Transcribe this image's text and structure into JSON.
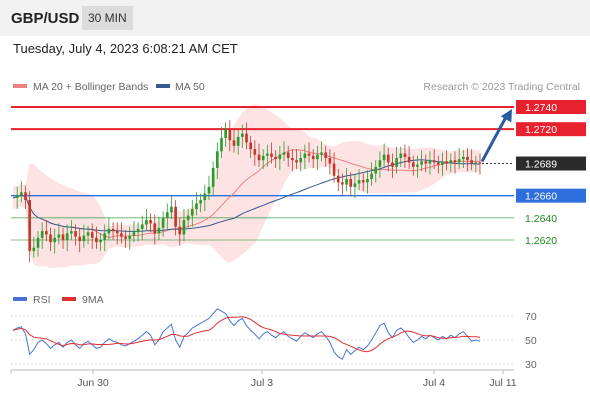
{
  "header": {
    "symbol": "GBP/USD",
    "timeframe": "30 MIN"
  },
  "datetime": "Tuesday, July 4, 2023 6:08:21 AM CET",
  "credit": "Research © 2023 Trading Central",
  "colors": {
    "resistance": "#e8212e",
    "support": "#2f6fdc",
    "target": "#1f8a1f",
    "candle_up": "#2b9b2b",
    "candle_down": "#c0392b",
    "ma20": "#f08080",
    "bollinger_fill": "#fde0e0",
    "ma50": "#355a8f",
    "rsi": "#4a72d6",
    "rsi_ma": "#e03030",
    "arrow": "#2c5a9e"
  },
  "chart_data": [
    {
      "type": "candlestick",
      "legend": [
        {
          "name": "MA 20 + Bollinger Bands",
          "color": "#f08080"
        },
        {
          "name": "MA 50",
          "color": "#355a8f"
        }
      ],
      "price_range": [
        1.26,
        1.275
      ],
      "levels": [
        {
          "value": 1.274,
          "label": "1.2740",
          "kind": "resistance"
        },
        {
          "value": 1.272,
          "label": "1.2720",
          "kind": "resistance"
        },
        {
          "value": 1.2689,
          "label": "1.2689",
          "kind": "last"
        },
        {
          "value": 1.266,
          "label": "1.2660",
          "kind": "support"
        },
        {
          "value": 1.264,
          "label": "1.2640",
          "kind": "target"
        },
        {
          "value": 1.262,
          "label": "1.2620",
          "kind": "target"
        }
      ],
      "close_path": [
        1.2658,
        1.266,
        1.2663,
        1.2656,
        1.261,
        1.2613,
        1.2622,
        1.2628,
        1.2625,
        1.2618,
        1.2622,
        1.2625,
        1.262,
        1.2626,
        1.2628,
        1.2623,
        1.2619,
        1.2624,
        1.2627,
        1.2622,
        1.2618,
        1.262,
        1.2626,
        1.263,
        1.2628,
        1.2626,
        1.2623,
        1.2621,
        1.2624,
        1.2627,
        1.263,
        1.2634,
        1.2638,
        1.2635,
        1.2626,
        1.2631,
        1.264,
        1.2645,
        1.265,
        1.2632,
        1.2625,
        1.2638,
        1.2642,
        1.2648,
        1.2653,
        1.2656,
        1.2662,
        1.2668,
        1.2685,
        1.27,
        1.2712,
        1.272,
        1.271,
        1.2705,
        1.2713,
        1.2716,
        1.2708,
        1.2702,
        1.2697,
        1.2692,
        1.2696,
        1.2698,
        1.2695,
        1.2693,
        1.2697,
        1.2699,
        1.2694,
        1.2692,
        1.269,
        1.2694,
        1.2698,
        1.2696,
        1.2693,
        1.2697,
        1.2699,
        1.2694,
        1.2689,
        1.2678,
        1.2672,
        1.267,
        1.2675,
        1.2668,
        1.2671,
        1.2674,
        1.2672,
        1.2675,
        1.268,
        1.2686,
        1.2692,
        1.2697,
        1.269,
        1.2686,
        1.2694,
        1.2698,
        1.2695,
        1.269,
        1.2686,
        1.2688,
        1.2691,
        1.2689,
        1.2692,
        1.269,
        1.2688,
        1.2691,
        1.2689,
        1.2692,
        1.269,
        1.2693,
        1.2695,
        1.2692,
        1.2689,
        1.269,
        1.2689
      ],
      "arrow": {
        "from": 1.2689,
        "to": 1.274
      },
      "x_ticks": [
        "Jun 30",
        "Jul 3",
        "Jul 4",
        "Jul 11"
      ]
    },
    {
      "type": "line",
      "legend": [
        {
          "name": "RSI",
          "color": "#4a72d6"
        },
        {
          "name": "9MA",
          "color": "#e03030"
        }
      ],
      "y_ticks": [
        70,
        50,
        30
      ],
      "ylim": [
        20,
        80
      ],
      "rsi": [
        58,
        60,
        61,
        55,
        38,
        42,
        48,
        50,
        47,
        43,
        46,
        48,
        44,
        48,
        50,
        46,
        43,
        47,
        49,
        46,
        43,
        44,
        48,
        51,
        49,
        48,
        46,
        45,
        47,
        49,
        51,
        54,
        57,
        54,
        46,
        50,
        57,
        60,
        63,
        50,
        44,
        53,
        56,
        60,
        62,
        64,
        66,
        68,
        72,
        76,
        74,
        72,
        66,
        62,
        66,
        68,
        62,
        58,
        55,
        51,
        55,
        57,
        54,
        52,
        55,
        57,
        53,
        51,
        49,
        53,
        56,
        54,
        52,
        55,
        57,
        53,
        48,
        40,
        36,
        34,
        42,
        38,
        41,
        44,
        42,
        45,
        50,
        56,
        62,
        64,
        56,
        52,
        58,
        60,
        57,
        52,
        48,
        50,
        53,
        51,
        54,
        52,
        50,
        53,
        51,
        54,
        52,
        55,
        57,
        53,
        49,
        50,
        49
      ]
    }
  ]
}
